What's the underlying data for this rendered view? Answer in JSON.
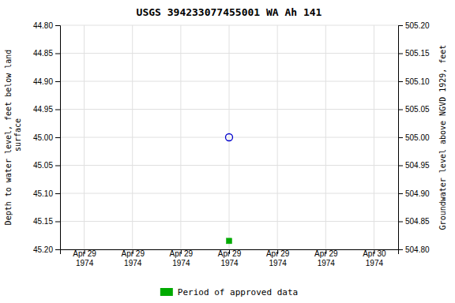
{
  "chart_data": {
    "type": "scatter",
    "title": "USGS 394233077455001 WA Ah 141",
    "y_label": "Depth to water level, feet below land\n surface",
    "y2_label": "Groundwater level above NGVD 1929, feet",
    "categories": [
      "Apr 29\n1974",
      "Apr 29\n1974",
      "Apr 29\n1974",
      "Apr 29\n1974",
      "Apr 29\n1974",
      "Apr 29\n1974",
      "Apr 30\n1974"
    ],
    "series": [
      {
        "color": "#0000cc",
        "marker": "circle-open",
        "values": [
          null,
          null,
          null,
          45.0,
          null,
          null,
          null
        ]
      },
      {
        "name": "Period of approved data",
        "color": "#00aa00",
        "marker": "square",
        "values": [
          null,
          null,
          null,
          45.185,
          null,
          null,
          null
        ]
      }
    ],
    "ylim": [
      45.2,
      44.8
    ],
    "yticks": [
      {
        "value": 44.8,
        "label": "44.80"
      },
      44.85,
      {
        "value": 44.9,
        "label": "44.90"
      },
      44.95,
      {
        "value": 45.0,
        "label": "45.00"
      },
      45.05,
      {
        "value": 45.1,
        "label": "45.10"
      },
      45.15,
      {
        "value": 45.2,
        "label": "45.20"
      }
    ],
    "y2lim": [
      504.8,
      505.2
    ],
    "y2ticks": [
      {
        "value": 505.2,
        "label": "505.20"
      },
      505.15,
      {
        "value": 505.1,
        "label": "505.10"
      },
      505.05,
      {
        "value": 505.0,
        "label": "505.00"
      },
      504.95,
      {
        "value": 504.9,
        "label": "504.90"
      },
      504.85,
      {
        "value": 504.8,
        "label": "504.80"
      }
    ],
    "grid": true,
    "legend": "bottom"
  }
}
